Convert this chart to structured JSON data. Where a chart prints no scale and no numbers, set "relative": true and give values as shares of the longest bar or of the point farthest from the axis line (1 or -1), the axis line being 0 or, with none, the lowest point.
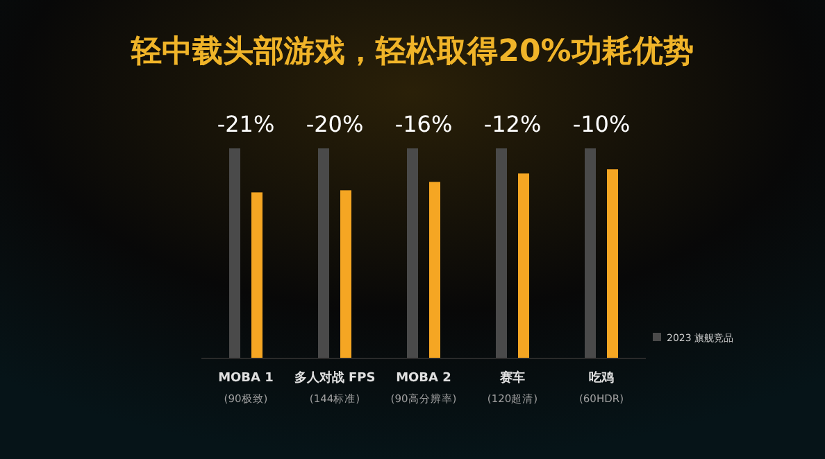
{
  "chart_data": {
    "type": "bar",
    "title": "轻中载头部游戏，轻松取得20%功耗优势",
    "relative": true,
    "legend": "bottom right",
    "categories": [
      "MOBA 1\n(90极致)",
      "多人对战 FPS\n(144标准)",
      "MOBA 2\n(90高分辨率)",
      "赛车\n(120超清)",
      "吃鸡\n(60HDR)"
    ],
    "series": [
      {
        "name": "2023 旗舰竞品",
        "color": "#4a4a4a",
        "values": [
          1,
          1,
          1,
          1,
          1
        ]
      },
      {
        "color": "#f5a623",
        "values": [
          0.79,
          0.8,
          0.84,
          0.88,
          0.9
        ]
      }
    ],
    "annotations": [
      "-21%",
      "-20%",
      "-16%",
      "-12%",
      "-10%"
    ]
  }
}
